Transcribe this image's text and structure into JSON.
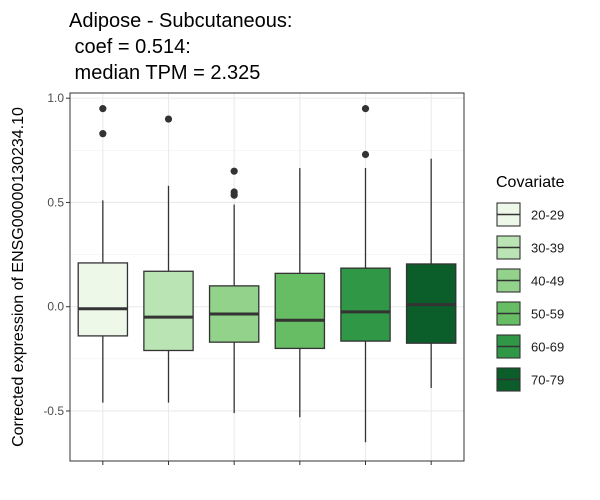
{
  "chart_data": {
    "type": "box",
    "title_lines": [
      "Adipose - Subcutaneous:",
      " coef = 0.514:",
      " median TPM = 2.325"
    ],
    "ylabel": "Corrected expression of ENSG00000130234.10",
    "xlabel": "",
    "ylim": [
      -0.74,
      1.025
    ],
    "yticks": [
      -0.5,
      0.0,
      0.5,
      1.0
    ],
    "ytick_labels": [
      "-0.5",
      "0.0",
      "0.5",
      "1.0"
    ],
    "grid": true,
    "legend": {
      "title": "Covariate",
      "position": "right"
    },
    "categories": [
      "20-29",
      "30-39",
      "40-49",
      "50-59",
      "60-69",
      "70-79"
    ],
    "colors": [
      "#edf8e9",
      "#bae4b3",
      "#92d28a",
      "#66bd63",
      "#2f9746",
      "#0b5e2a"
    ],
    "boxes": [
      {
        "name": "20-29",
        "whisker_low": -0.46,
        "q1": -0.14,
        "median": -0.01,
        "q3": 0.21,
        "whisker_high": 0.51,
        "outliers": [
          0.95,
          0.83
        ]
      },
      {
        "name": "30-39",
        "whisker_low": -0.46,
        "q1": -0.21,
        "median": -0.05,
        "q3": 0.17,
        "whisker_high": 0.58,
        "outliers": [
          0.9
        ]
      },
      {
        "name": "40-49",
        "whisker_low": -0.51,
        "q1": -0.17,
        "median": -0.035,
        "q3": 0.1,
        "whisker_high": 0.49,
        "outliers": [
          0.65,
          0.55,
          0.535
        ]
      },
      {
        "name": "50-59",
        "whisker_low": -0.53,
        "q1": -0.2,
        "median": -0.065,
        "q3": 0.16,
        "whisker_high": 0.665,
        "outliers": []
      },
      {
        "name": "60-69",
        "whisker_low": -0.65,
        "q1": -0.165,
        "median": -0.025,
        "q3": 0.185,
        "whisker_high": 0.665,
        "outliers": [
          0.95,
          0.73
        ]
      },
      {
        "name": "70-79",
        "whisker_low": -0.39,
        "q1": -0.175,
        "median": 0.01,
        "q3": 0.205,
        "whisker_high": 0.71,
        "outliers": []
      }
    ]
  }
}
